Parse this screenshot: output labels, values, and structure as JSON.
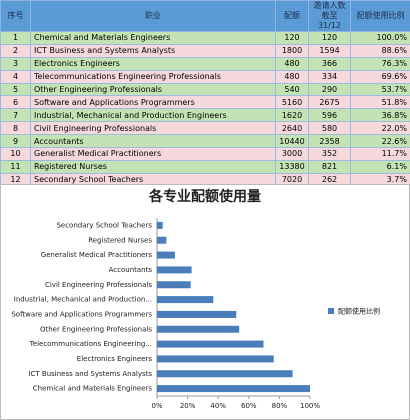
{
  "table": {
    "headers": [
      "序号",
      "职业",
      "配额",
      "邀请人数截至31/12",
      "配额使用比例"
    ],
    "rows": [
      [
        "1",
        "Chemical and Materials Engineers",
        "120",
        "120",
        "100.0%"
      ],
      [
        "2",
        "ICT Business and Systems Analysts",
        "1800",
        "1594",
        "88.6%"
      ],
      [
        "3",
        "Electronics Engineers",
        "480",
        "366",
        "76.3%"
      ],
      [
        "4",
        "Telecommunications Engineering Professionals",
        "480",
        "334",
        "69.6%"
      ],
      [
        "5",
        "Other Engineering Professionals",
        "540",
        "290",
        "53.7%"
      ],
      [
        "6",
        "Software and Applications Programmers",
        "5160",
        "2675",
        "51.8%"
      ],
      [
        "7",
        "Industrial, Mechanical and Production Engineers",
        "1620",
        "596",
        "36.8%"
      ],
      [
        "8",
        "Civil Engineering Professionals",
        "2640",
        "580",
        "22.0%"
      ],
      [
        "9",
        "Accountants",
        "10440",
        "2358",
        "22.6%"
      ],
      [
        "10",
        "Generalist Medical Practitioners",
        "3000",
        "352",
        "11.7%"
      ],
      [
        "11",
        "Registered Nurses",
        "13380",
        "821",
        "6.1%"
      ],
      [
        "12",
        "Secondary School Teachers",
        "7020",
        "262",
        "3.7%"
      ]
    ]
  },
  "chart_data": {
    "type": "barh",
    "title": "各专业配额使用量",
    "categories": [
      "Chemical and Materials Engineers",
      "ICT Business and Systems Analysts",
      "Electronics Engineers",
      "Telecommunications Engineering...",
      "Other Engineering Professionals",
      "Software and Applications Programmers",
      "Industrial, Mechanical and Production...",
      "Civil Engineering Professionals",
      "Accountants",
      "Generalist Medical Practitioners",
      "Registered Nurses",
      "Secondary School Teachers"
    ],
    "series": [
      {
        "name": "配额使用比例",
        "color": "#4a7ebb",
        "values": [
          100,
          88.6,
          76.3,
          69.6,
          53.7,
          51.8,
          36.8,
          22.0,
          22.6,
          11.7,
          6.1,
          3.7
        ]
      }
    ],
    "xlim": [
      0,
      100
    ],
    "xticks": [
      {
        "value": 0,
        "label": "0%"
      },
      {
        "value": 20,
        "label": "20%"
      },
      {
        "value": 40,
        "label": "40%"
      },
      {
        "value": 60,
        "label": "60%"
      },
      {
        "value": 80,
        "label": "80%"
      },
      {
        "value": 100,
        "label": "100%"
      }
    ],
    "legend": "right"
  }
}
